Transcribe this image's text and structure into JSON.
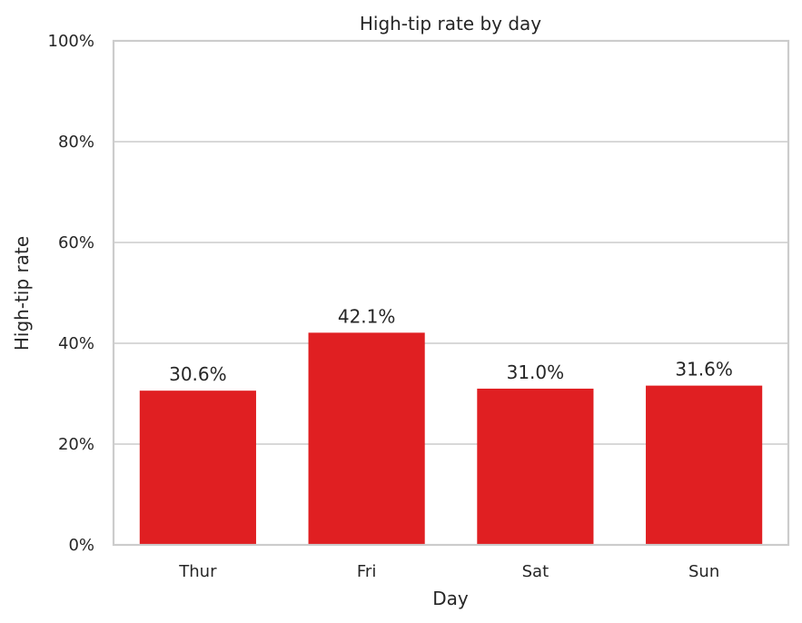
{
  "chart_data": {
    "type": "bar",
    "title": "High-tip rate by day",
    "xlabel": "Day",
    "ylabel": "High-tip rate",
    "categories": [
      "Thur",
      "Fri",
      "Sat",
      "Sun"
    ],
    "values": [
      30.6,
      42.1,
      31.0,
      31.6
    ],
    "value_labels": [
      "30.6%",
      "42.1%",
      "31.0%",
      "31.6%"
    ],
    "ylim": [
      0,
      100
    ],
    "yticks": [
      0,
      20,
      40,
      60,
      80,
      100
    ],
    "ytick_labels": [
      "0%",
      "20%",
      "40%",
      "60%",
      "80%",
      "100%"
    ],
    "grid": "horizontal",
    "bar_color": "#e01f22"
  }
}
